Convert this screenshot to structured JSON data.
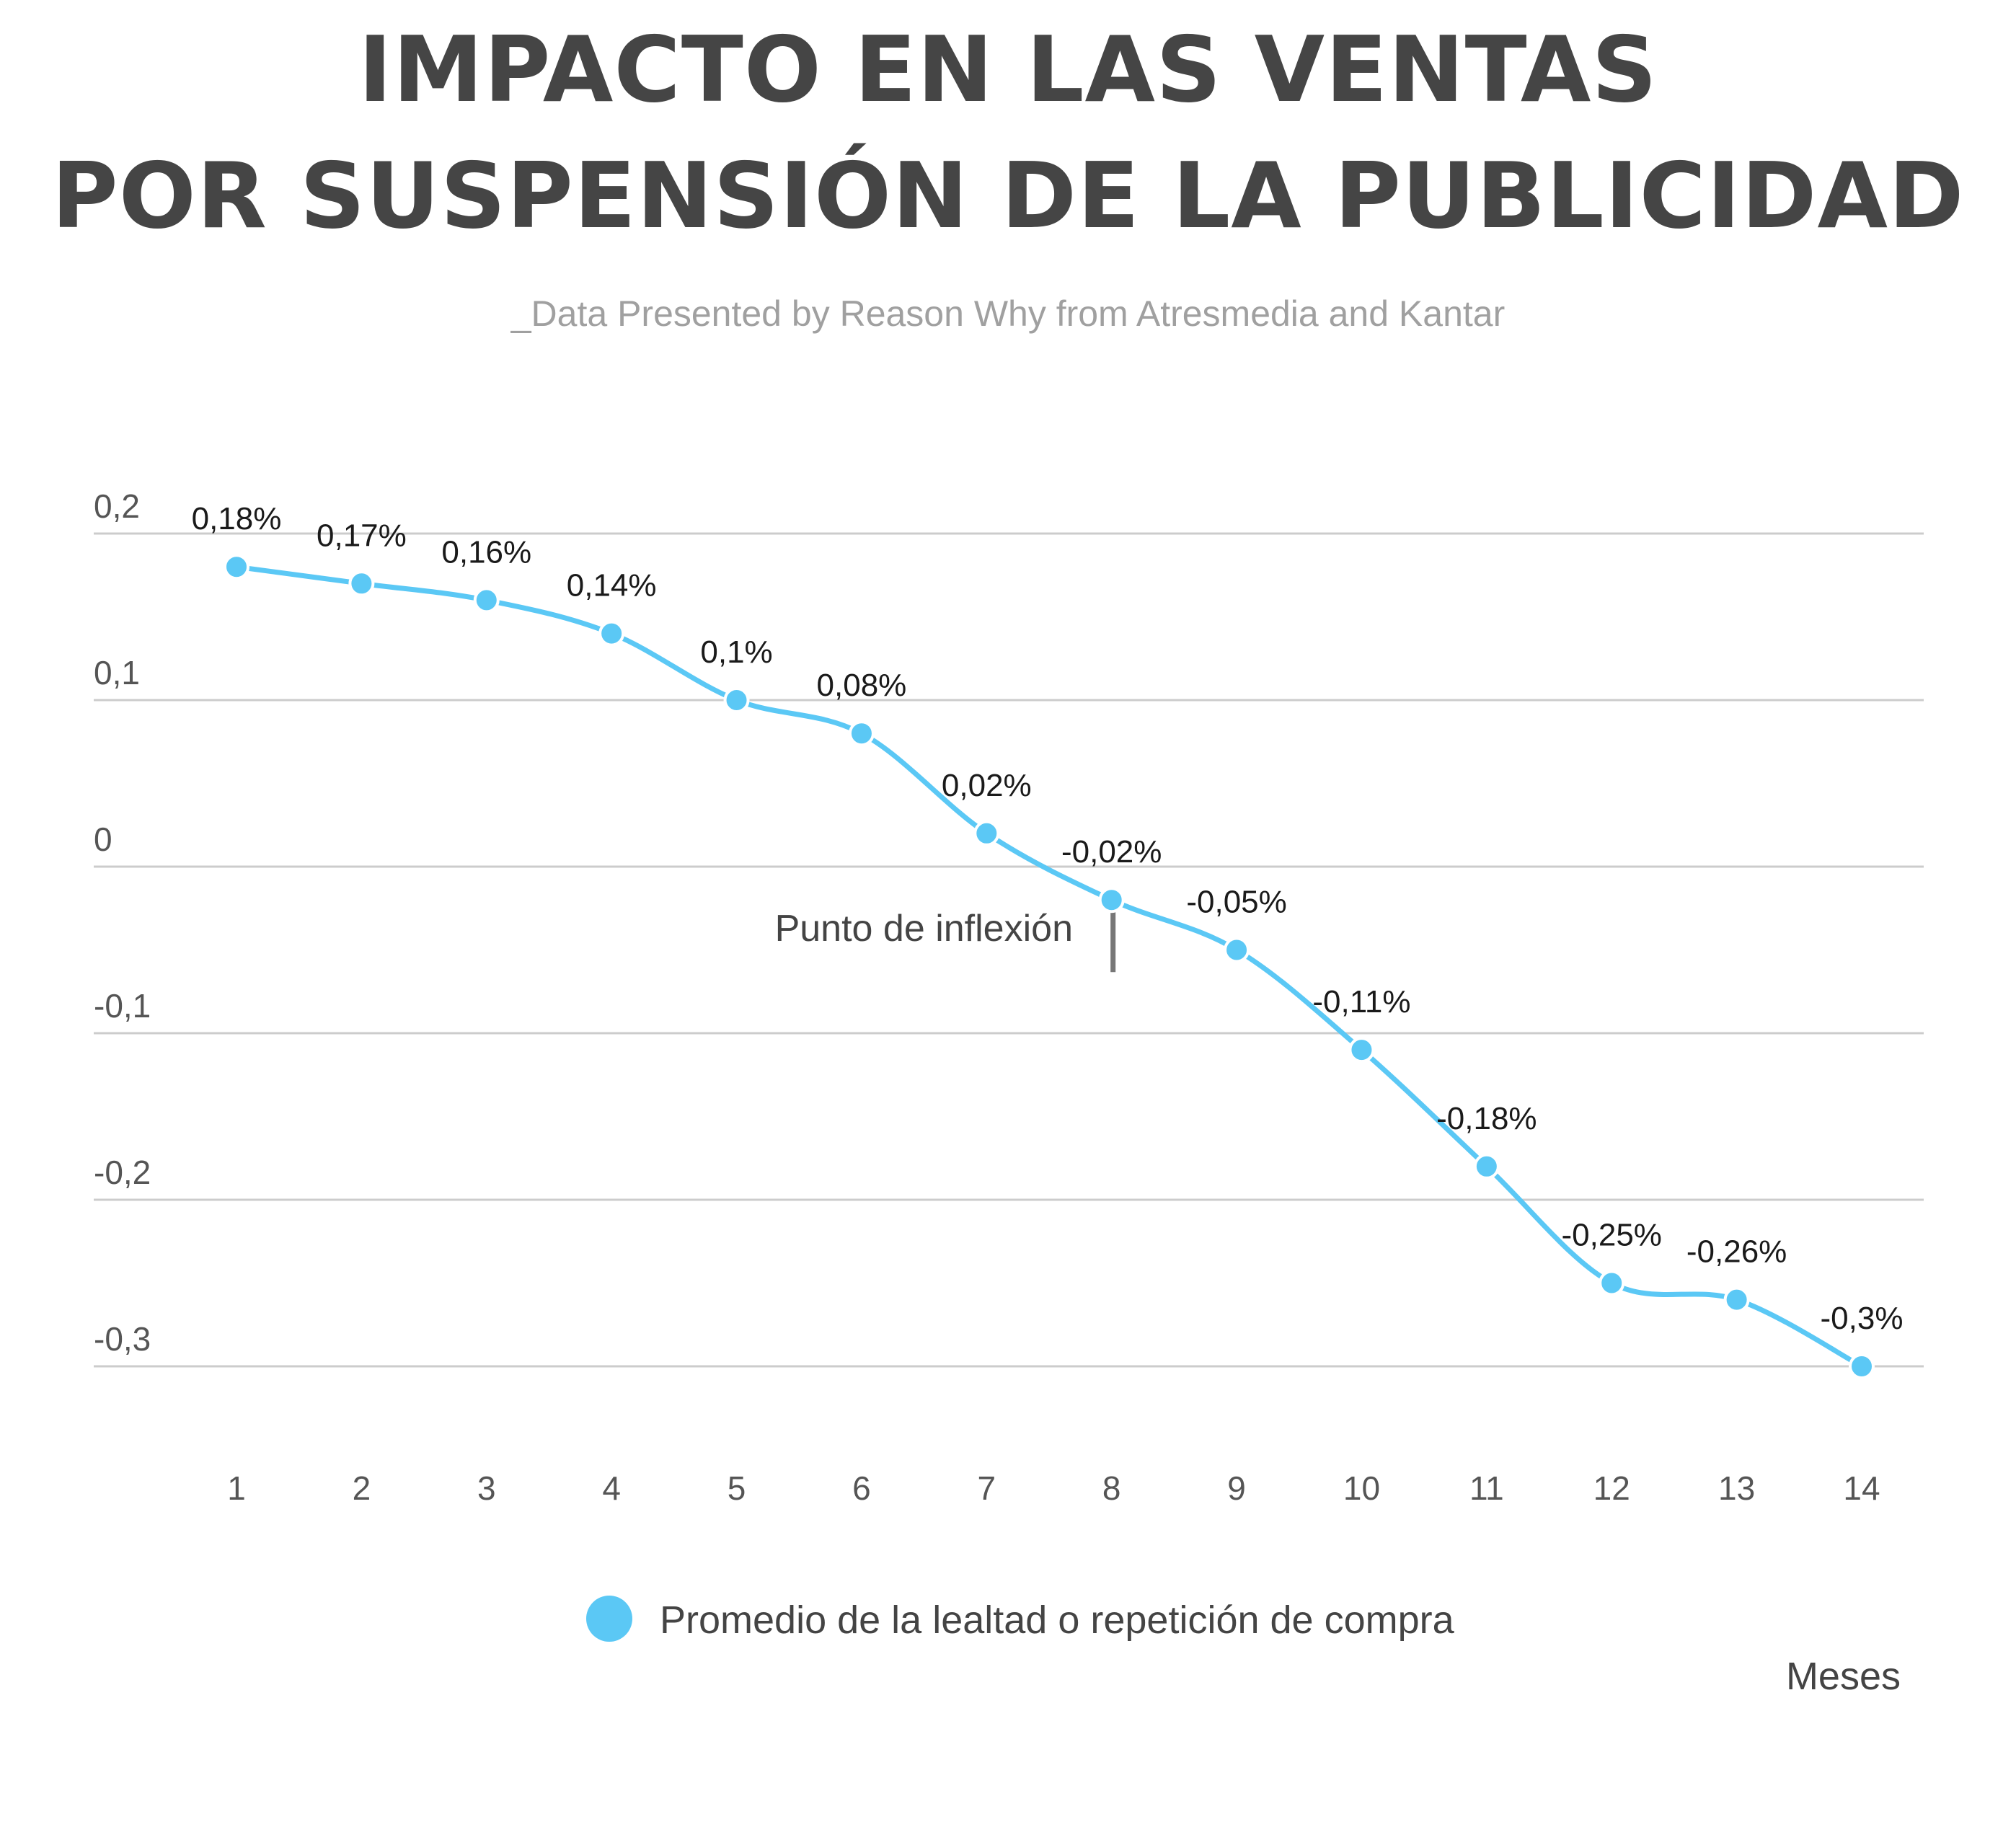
{
  "title_lines": [
    "IMPACTO EN LAS VENTAS",
    "POR SUSPENSIÓN DE LA PUBLICIDAD"
  ],
  "subtitle": "_Data Presented by Reason Why from Atresmedia and Kantar",
  "colors": {
    "series": "#5bc8f5",
    "grid": "#cccccc",
    "annotation_marker": "#777777"
  },
  "chart_data": {
    "type": "line",
    "title": "IMPACTO EN LAS VENTAS POR SUSPENSIÓN DE LA PUBLICIDAD",
    "xlabel": "Meses",
    "ylabel": "",
    "x": [
      1,
      2,
      3,
      4,
      5,
      6,
      7,
      8,
      9,
      10,
      11,
      12,
      13,
      14
    ],
    "ylim": [
      -0.3,
      0.2
    ],
    "yticks": [
      0.2,
      0.1,
      0,
      -0.1,
      -0.2,
      -0.3
    ],
    "ytick_labels": [
      "0,2",
      "0,1",
      "0",
      "-0,1",
      "-0,2",
      "-0,3"
    ],
    "grid": true,
    "legend_position": "bottom",
    "series": [
      {
        "name": "Promedio de la lealtad o repetición de compra",
        "values": [
          0.18,
          0.17,
          0.16,
          0.14,
          0.1,
          0.08,
          0.02,
          -0.02,
          -0.05,
          -0.11,
          -0.18,
          -0.25,
          -0.26,
          -0.3
        ],
        "labels": [
          "0,18%",
          "0,17%",
          "0,16%",
          "0,14%",
          "0,1%",
          "0,08%",
          "0,02%",
          "-0,02%",
          "-0,05%",
          "-0,11%",
          "-0,18%",
          "-0,25%",
          "-0,26%",
          "-0,3%"
        ]
      }
    ],
    "annotations": [
      {
        "text": "Punto de inflexión",
        "x": 8
      }
    ]
  }
}
